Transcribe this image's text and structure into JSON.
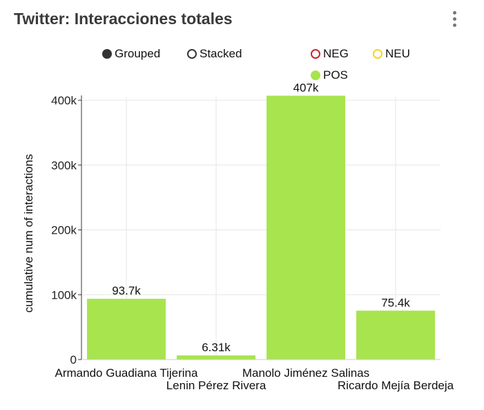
{
  "header": {
    "title": "Twitter: Interacciones totales",
    "menu_icon": "more-vert-icon"
  },
  "mode_toggle": {
    "options": [
      {
        "label": "Grouped",
        "selected": true
      },
      {
        "label": "Stacked",
        "selected": false
      }
    ]
  },
  "legend": [
    {
      "label": "NEG",
      "color": "#c62828",
      "filled": false
    },
    {
      "label": "NEU",
      "color": "#f5d327",
      "filled": false
    },
    {
      "label": "POS",
      "color": "#a8e44e",
      "filled": true
    }
  ],
  "chart_data": {
    "type": "bar",
    "ylabel": "cumulative num of interactions",
    "xlabel": "",
    "ylim": [
      0,
      400000
    ],
    "yticks": [
      0,
      100000,
      200000,
      300000,
      400000
    ],
    "ytick_labels": [
      "0",
      "100k",
      "200k",
      "300k",
      "400k"
    ],
    "grid": true,
    "legend_position": "top",
    "categories": [
      "Armando Guadiana Tijerina",
      "Lenin Pérez Rivera",
      "Manolo Jiménez Salinas",
      "Ricardo Mejía Berdeja"
    ],
    "series": [
      {
        "name": "POS",
        "color": "#a8e44e",
        "values": [
          93700,
          6310,
          407000,
          75400
        ],
        "labels": [
          "93.7k",
          "6.31k",
          "407k",
          "75.4k"
        ]
      }
    ]
  }
}
